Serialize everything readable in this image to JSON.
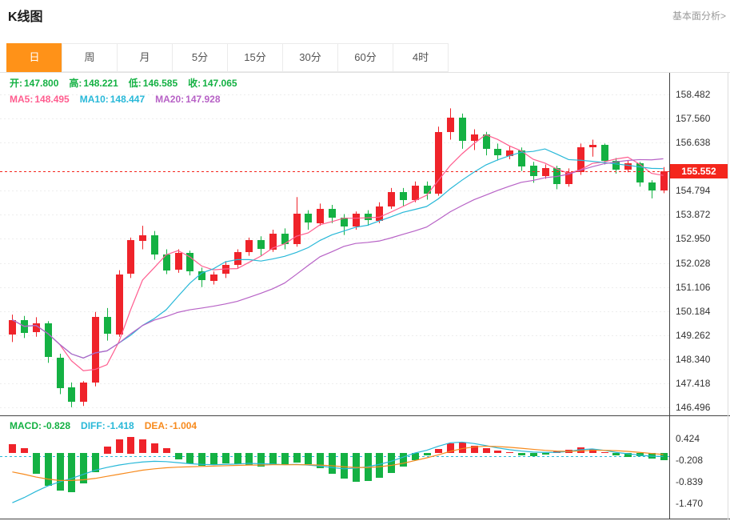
{
  "header": {
    "title": "K线图",
    "link": "基本面分析>"
  },
  "tabs": {
    "active_index": 0,
    "items": [
      {
        "label": "日"
      },
      {
        "label": "周"
      },
      {
        "label": "月"
      },
      {
        "label": "5分"
      },
      {
        "label": "15分"
      },
      {
        "label": "30分"
      },
      {
        "label": "60分"
      },
      {
        "label": "4时"
      }
    ]
  },
  "ohlc_line": {
    "open_label": "开:",
    "open": "147.800",
    "high_label": "高:",
    "high": "148.221",
    "low_label": "低:",
    "low": "146.585",
    "close_label": "收:",
    "close": "147.065"
  },
  "ma_line": {
    "ma5_label": "MA5:",
    "ma5": "148.495",
    "ma10_label": "MA10:",
    "ma10": "148.447",
    "ma20_label": "MA20:",
    "ma20": "147.928"
  },
  "macd_line": {
    "macd_label": "MACD:",
    "macd": "-0.828",
    "diff_label": "DIFF:",
    "diff": "-1.418",
    "dea_label": "DEA:",
    "dea": "-1.004"
  },
  "colors": {
    "up": "#ef232a",
    "down": "#14b143",
    "ma5": "#ff5d8f",
    "ma10": "#28b8d8",
    "ma20": "#b762c6",
    "diff": "#28b8d8",
    "dea": "#f78a1d",
    "price_line": "#f4261c",
    "accent": "#ff9218",
    "axis_text": "#333333",
    "border_dark": "#444444",
    "grid": "#ededed"
  },
  "chart_data": [
    {
      "type": "candlestick",
      "panel": "main",
      "title": "K线图",
      "xlabel": "",
      "ylabel": "",
      "ylim": [
        146.0,
        159.3
      ],
      "y_ticks": [
        158.482,
        157.56,
        156.638,
        154.794,
        153.872,
        152.95,
        152.028,
        151.106,
        150.184,
        149.262,
        148.34,
        147.418,
        146.496
      ],
      "current_price": 155.552,
      "ma_windows": [
        5,
        10,
        20
      ],
      "candles": [
        [
          149.3,
          150.05,
          149.0,
          149.85
        ],
        [
          149.85,
          150.0,
          149.15,
          149.35
        ],
        [
          149.35,
          149.95,
          149.2,
          149.7
        ],
        [
          149.7,
          149.8,
          148.2,
          148.4
        ],
        [
          148.4,
          148.55,
          147.0,
          147.25
        ],
        [
          147.25,
          147.45,
          146.5,
          146.7
        ],
        [
          146.7,
          147.5,
          146.55,
          147.45
        ],
        [
          147.45,
          150.15,
          147.3,
          149.95
        ],
        [
          149.95,
          150.3,
          149.05,
          149.3
        ],
        [
          149.3,
          151.75,
          149.2,
          151.6
        ],
        [
          151.6,
          153.0,
          151.45,
          152.9
        ],
        [
          152.9,
          153.45,
          152.55,
          153.1
        ],
        [
          153.1,
          153.25,
          152.15,
          152.35
        ],
        [
          152.35,
          152.55,
          151.6,
          151.75
        ],
        [
          151.75,
          152.55,
          151.65,
          152.4
        ],
        [
          152.4,
          152.5,
          151.55,
          151.7
        ],
        [
          151.7,
          151.85,
          151.1,
          151.35
        ],
        [
          151.35,
          151.7,
          151.2,
          151.6
        ],
        [
          151.6,
          152.1,
          151.45,
          151.95
        ],
        [
          151.95,
          152.55,
          151.8,
          152.45
        ],
        [
          152.45,
          153.0,
          152.3,
          152.9
        ],
        [
          152.9,
          153.05,
          152.3,
          152.55
        ],
        [
          152.55,
          153.3,
          152.45,
          153.15
        ],
        [
          153.15,
          153.35,
          152.55,
          152.75
        ],
        [
          152.75,
          154.55,
          152.65,
          153.9
        ],
        [
          153.9,
          154.05,
          153.3,
          153.55
        ],
        [
          153.55,
          154.3,
          153.45,
          154.1
        ],
        [
          154.1,
          154.25,
          153.55,
          153.75
        ],
        [
          153.75,
          153.9,
          153.1,
          153.4
        ],
        [
          153.4,
          154.0,
          153.3,
          153.9
        ],
        [
          153.9,
          154.05,
          153.45,
          153.65
        ],
        [
          153.65,
          154.35,
          153.55,
          154.2
        ],
        [
          154.2,
          154.9,
          154.1,
          154.75
        ],
        [
          154.75,
          154.9,
          154.2,
          154.45
        ],
        [
          154.45,
          155.15,
          154.35,
          155.0
        ],
        [
          155.0,
          155.15,
          154.45,
          154.7
        ],
        [
          154.7,
          157.25,
          154.6,
          157.05
        ],
        [
          157.05,
          157.95,
          156.75,
          157.6
        ],
        [
          157.6,
          157.75,
          156.4,
          156.7
        ],
        [
          156.7,
          157.15,
          156.35,
          156.95
        ],
        [
          156.95,
          157.05,
          156.15,
          156.4
        ],
        [
          156.4,
          156.6,
          155.95,
          156.15
        ],
        [
          156.15,
          156.5,
          156.0,
          156.35
        ],
        [
          156.35,
          156.45,
          155.55,
          155.75
        ],
        [
          155.75,
          155.9,
          155.1,
          155.35
        ],
        [
          155.35,
          155.8,
          155.25,
          155.65
        ],
        [
          155.65,
          155.75,
          154.85,
          155.05
        ],
        [
          155.05,
          155.65,
          154.95,
          155.5
        ],
        [
          155.5,
          156.6,
          155.4,
          156.45
        ],
        [
          156.45,
          156.75,
          156.1,
          156.55
        ],
        [
          156.55,
          156.6,
          155.8,
          155.95
        ],
        [
          155.95,
          156.05,
          155.45,
          155.6
        ],
        [
          155.6,
          155.95,
          155.5,
          155.85
        ],
        [
          155.85,
          155.9,
          154.95,
          155.1
        ],
        [
          155.1,
          155.2,
          154.5,
          154.8
        ],
        [
          154.8,
          155.7,
          154.7,
          155.55
        ]
      ]
    },
    {
      "type": "bar",
      "panel": "macd",
      "title": "MACD",
      "ylim": [
        -1.75,
        0.85
      ],
      "y_ticks": [
        0.424,
        -0.208,
        -0.839,
        -1.47
      ],
      "ref_line": -0.1,
      "hist": [
        0.25,
        0.15,
        -0.6,
        -0.95,
        -1.1,
        -1.15,
        -0.9,
        -0.55,
        0.2,
        0.4,
        0.48,
        0.4,
        0.28,
        0.15,
        -0.18,
        -0.3,
        -0.38,
        -0.35,
        -0.3,
        -0.32,
        -0.36,
        -0.4,
        -0.35,
        -0.32,
        -0.28,
        -0.33,
        -0.45,
        -0.6,
        -0.75,
        -0.85,
        -0.82,
        -0.72,
        -0.58,
        -0.4,
        -0.22,
        -0.08,
        0.12,
        0.28,
        0.3,
        0.22,
        0.14,
        0.08,
        0.02,
        -0.06,
        -0.1,
        -0.05,
        0.04,
        0.1,
        0.16,
        0.12,
        0.02,
        -0.08,
        -0.12,
        -0.1,
        -0.16,
        -0.2
      ],
      "diff": [
        -1.45,
        -1.3,
        -1.12,
        -0.96,
        -0.84,
        -0.74,
        -0.62,
        -0.5,
        -0.42,
        -0.35,
        -0.3,
        -0.26,
        -0.24,
        -0.25,
        -0.28,
        -0.31,
        -0.33,
        -0.34,
        -0.33,
        -0.32,
        -0.3,
        -0.31,
        -0.32,
        -0.34,
        -0.33,
        -0.35,
        -0.38,
        -0.42,
        -0.46,
        -0.44,
        -0.4,
        -0.33,
        -0.24,
        -0.12,
        0.0,
        0.08,
        0.2,
        0.3,
        0.32,
        0.28,
        0.22,
        0.15,
        0.1,
        0.06,
        0.03,
        0.02,
        0.02,
        0.05,
        0.1,
        0.12,
        0.08,
        0.02,
        -0.02,
        -0.06,
        -0.09,
        -0.1
      ],
      "dea": [
        -0.55,
        -0.62,
        -0.7,
        -0.76,
        -0.8,
        -0.8,
        -0.78,
        -0.74,
        -0.68,
        -0.62,
        -0.56,
        -0.5,
        -0.46,
        -0.43,
        -0.41,
        -0.4,
        -0.39,
        -0.38,
        -0.37,
        -0.36,
        -0.35,
        -0.35,
        -0.34,
        -0.34,
        -0.34,
        -0.34,
        -0.35,
        -0.37,
        -0.4,
        -0.42,
        -0.42,
        -0.4,
        -0.36,
        -0.3,
        -0.22,
        -0.14,
        -0.05,
        0.05,
        0.13,
        0.18,
        0.2,
        0.19,
        0.17,
        0.14,
        0.11,
        0.08,
        0.06,
        0.05,
        0.06,
        0.08,
        0.08,
        0.07,
        0.05,
        0.02,
        -0.01,
        -0.04
      ]
    }
  ]
}
